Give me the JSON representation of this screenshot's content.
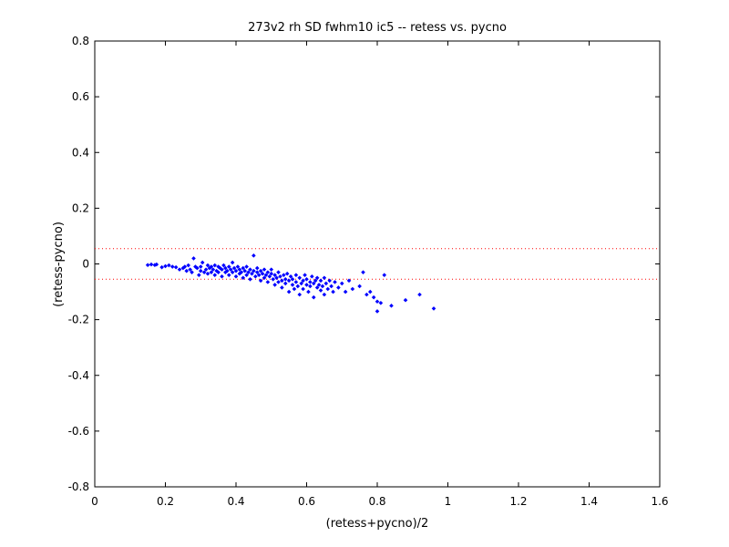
{
  "chart_data": {
    "type": "scatter",
    "title": "273v2 rh SD fwhm10 ic5 -- retess vs. pycno",
    "xlabel": "(retess+pycno)/2",
    "ylabel": "(retess-pycno)",
    "xlim": [
      0,
      1.6
    ],
    "ylim": [
      -0.8,
      0.8
    ],
    "xticks": [
      "0",
      "0.2",
      "0.4",
      "0.6",
      "0.8",
      "1",
      "1.2",
      "1.4",
      "1.6"
    ],
    "yticks": [
      "0.8",
      "0.6",
      "0.4",
      "0.2",
      "0",
      "-0.2",
      "-0.4",
      "-0.6",
      "-0.8"
    ],
    "grid": false,
    "marker_color": "#0000ff",
    "reference_line_color": "#ff0000",
    "reference_lines": [
      0.055,
      -0.055
    ],
    "points": [
      [
        0.15,
        -0.004
      ],
      [
        0.16,
        -0.002
      ],
      [
        0.17,
        -0.004
      ],
      [
        0.175,
        -0.002
      ],
      [
        0.19,
        -0.012
      ],
      [
        0.2,
        -0.008
      ],
      [
        0.21,
        -0.005
      ],
      [
        0.22,
        -0.01
      ],
      [
        0.23,
        -0.012
      ],
      [
        0.24,
        -0.02
      ],
      [
        0.25,
        -0.015
      ],
      [
        0.255,
        -0.01
      ],
      [
        0.26,
        -0.025
      ],
      [
        0.265,
        -0.005
      ],
      [
        0.27,
        -0.02
      ],
      [
        0.275,
        -0.03
      ],
      [
        0.28,
        0.02
      ],
      [
        0.285,
        -0.01
      ],
      [
        0.29,
        -0.015
      ],
      [
        0.295,
        -0.04
      ],
      [
        0.3,
        -0.01
      ],
      [
        0.3,
        -0.025
      ],
      [
        0.305,
        0.005
      ],
      [
        0.31,
        -0.03
      ],
      [
        0.315,
        -0.02
      ],
      [
        0.32,
        -0.005
      ],
      [
        0.32,
        -0.035
      ],
      [
        0.325,
        -0.015
      ],
      [
        0.33,
        -0.01
      ],
      [
        0.33,
        -0.03
      ],
      [
        0.335,
        -0.02
      ],
      [
        0.34,
        -0.005
      ],
      [
        0.34,
        -0.04
      ],
      [
        0.345,
        -0.025
      ],
      [
        0.35,
        -0.01
      ],
      [
        0.35,
        -0.03
      ],
      [
        0.355,
        -0.015
      ],
      [
        0.36,
        -0.02
      ],
      [
        0.36,
        -0.045
      ],
      [
        0.365,
        -0.005
      ],
      [
        0.37,
        -0.03
      ],
      [
        0.37,
        -0.015
      ],
      [
        0.375,
        -0.025
      ],
      [
        0.38,
        -0.01
      ],
      [
        0.38,
        -0.04
      ],
      [
        0.385,
        -0.02
      ],
      [
        0.39,
        -0.03
      ],
      [
        0.39,
        0.005
      ],
      [
        0.395,
        -0.015
      ],
      [
        0.4,
        -0.025
      ],
      [
        0.4,
        -0.045
      ],
      [
        0.405,
        -0.01
      ],
      [
        0.41,
        -0.035
      ],
      [
        0.41,
        -0.02
      ],
      [
        0.415,
        -0.03
      ],
      [
        0.42,
        -0.015
      ],
      [
        0.42,
        -0.05
      ],
      [
        0.425,
        -0.025
      ],
      [
        0.43,
        -0.04
      ],
      [
        0.43,
        -0.01
      ],
      [
        0.435,
        -0.03
      ],
      [
        0.44,
        -0.02
      ],
      [
        0.44,
        -0.055
      ],
      [
        0.445,
        -0.035
      ],
      [
        0.45,
        -0.025
      ],
      [
        0.45,
        0.03
      ],
      [
        0.455,
        -0.045
      ],
      [
        0.46,
        -0.03
      ],
      [
        0.46,
        -0.015
      ],
      [
        0.465,
        -0.04
      ],
      [
        0.47,
        -0.025
      ],
      [
        0.47,
        -0.06
      ],
      [
        0.475,
        -0.035
      ],
      [
        0.48,
        -0.02
      ],
      [
        0.48,
        -0.05
      ],
      [
        0.485,
        -0.04
      ],
      [
        0.49,
        -0.03
      ],
      [
        0.49,
        -0.065
      ],
      [
        0.495,
        -0.045
      ],
      [
        0.5,
        -0.035
      ],
      [
        0.5,
        -0.02
      ],
      [
        0.505,
        -0.055
      ],
      [
        0.51,
        -0.04
      ],
      [
        0.51,
        -0.075
      ],
      [
        0.515,
        -0.05
      ],
      [
        0.52,
        -0.03
      ],
      [
        0.52,
        -0.065
      ],
      [
        0.525,
        -0.045
      ],
      [
        0.53,
        -0.06
      ],
      [
        0.53,
        -0.085
      ],
      [
        0.535,
        -0.04
      ],
      [
        0.54,
        -0.055
      ],
      [
        0.54,
        -0.07
      ],
      [
        0.545,
        -0.035
      ],
      [
        0.55,
        -0.06
      ],
      [
        0.55,
        -0.1
      ],
      [
        0.555,
        -0.045
      ],
      [
        0.56,
        -0.075
      ],
      [
        0.56,
        -0.055
      ],
      [
        0.565,
        -0.09
      ],
      [
        0.57,
        -0.04
      ],
      [
        0.57,
        -0.065
      ],
      [
        0.575,
        -0.08
      ],
      [
        0.58,
        -0.05
      ],
      [
        0.58,
        -0.11
      ],
      [
        0.585,
        -0.07
      ],
      [
        0.59,
        -0.06
      ],
      [
        0.59,
        -0.09
      ],
      [
        0.595,
        -0.04
      ],
      [
        0.6,
        -0.075
      ],
      [
        0.6,
        -0.055
      ],
      [
        0.605,
        -0.1
      ],
      [
        0.61,
        -0.065
      ],
      [
        0.61,
        -0.08
      ],
      [
        0.615,
        -0.045
      ],
      [
        0.62,
        -0.07
      ],
      [
        0.62,
        -0.12
      ],
      [
        0.625,
        -0.06
      ],
      [
        0.63,
        -0.085
      ],
      [
        0.63,
        -0.05
      ],
      [
        0.635,
        -0.075
      ],
      [
        0.64,
        -0.095
      ],
      [
        0.64,
        -0.06
      ],
      [
        0.645,
        -0.08
      ],
      [
        0.65,
        -0.05
      ],
      [
        0.65,
        -0.11
      ],
      [
        0.655,
        -0.07
      ],
      [
        0.66,
        -0.09
      ],
      [
        0.665,
        -0.06
      ],
      [
        0.67,
        -0.08
      ],
      [
        0.675,
        -0.1
      ],
      [
        0.68,
        -0.065
      ],
      [
        0.69,
        -0.085
      ],
      [
        0.7,
        -0.07
      ],
      [
        0.71,
        -0.1
      ],
      [
        0.72,
        -0.06
      ],
      [
        0.73,
        -0.09
      ],
      [
        0.75,
        -0.08
      ],
      [
        0.76,
        -0.03
      ],
      [
        0.77,
        -0.11
      ],
      [
        0.78,
        -0.1
      ],
      [
        0.79,
        -0.12
      ],
      [
        0.8,
        -0.135
      ],
      [
        0.8,
        -0.17
      ],
      [
        0.81,
        -0.14
      ],
      [
        0.82,
        -0.04
      ],
      [
        0.84,
        -0.15
      ],
      [
        0.88,
        -0.13
      ],
      [
        0.92,
        -0.11
      ],
      [
        0.96,
        -0.16
      ]
    ]
  }
}
